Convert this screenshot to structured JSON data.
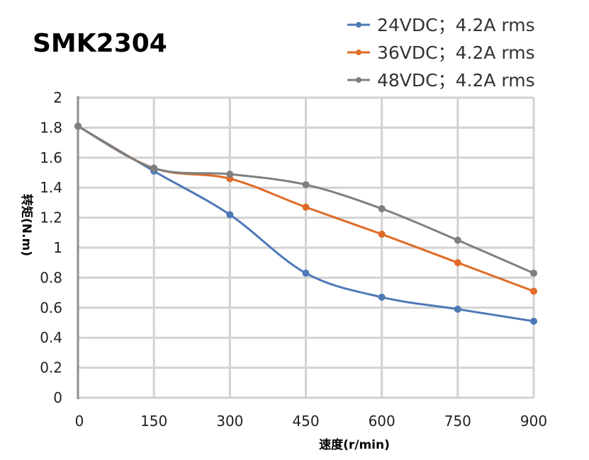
{
  "chart_data": {
    "type": "line",
    "title": "SMK2304",
    "xlabel": "速度(r/min)",
    "ylabel": "转矩(N.m)",
    "x": [
      0,
      150,
      300,
      450,
      600,
      750,
      900
    ],
    "xticks": [
      "0",
      "150",
      "300",
      "450",
      "600",
      "750",
      "900"
    ],
    "yticks": [
      "0",
      "0.2",
      "0.4",
      "0.6",
      "0.8",
      "1",
      "1.2",
      "1.4",
      "1.6",
      "1.8",
      "2"
    ],
    "xlim": [
      0,
      900
    ],
    "ylim": [
      0,
      2
    ],
    "grid": true,
    "smooth": true,
    "legend_position": "top-right",
    "series": [
      {
        "name": "24VDC；4.2A rms",
        "color": "#4e79b7",
        "values": [
          1.81,
          1.51,
          1.22,
          0.83,
          0.67,
          0.59,
          0.51
        ]
      },
      {
        "name": "36VDC；4.2A rms",
        "color": "#e06b26",
        "values": [
          1.81,
          1.53,
          1.46,
          1.27,
          1.09,
          0.9,
          0.71
        ]
      },
      {
        "name": "48VDC；4.2A rms",
        "color": "#7f7f7f",
        "values": [
          1.81,
          1.53,
          1.49,
          1.42,
          1.26,
          1.05,
          0.83
        ]
      }
    ]
  }
}
